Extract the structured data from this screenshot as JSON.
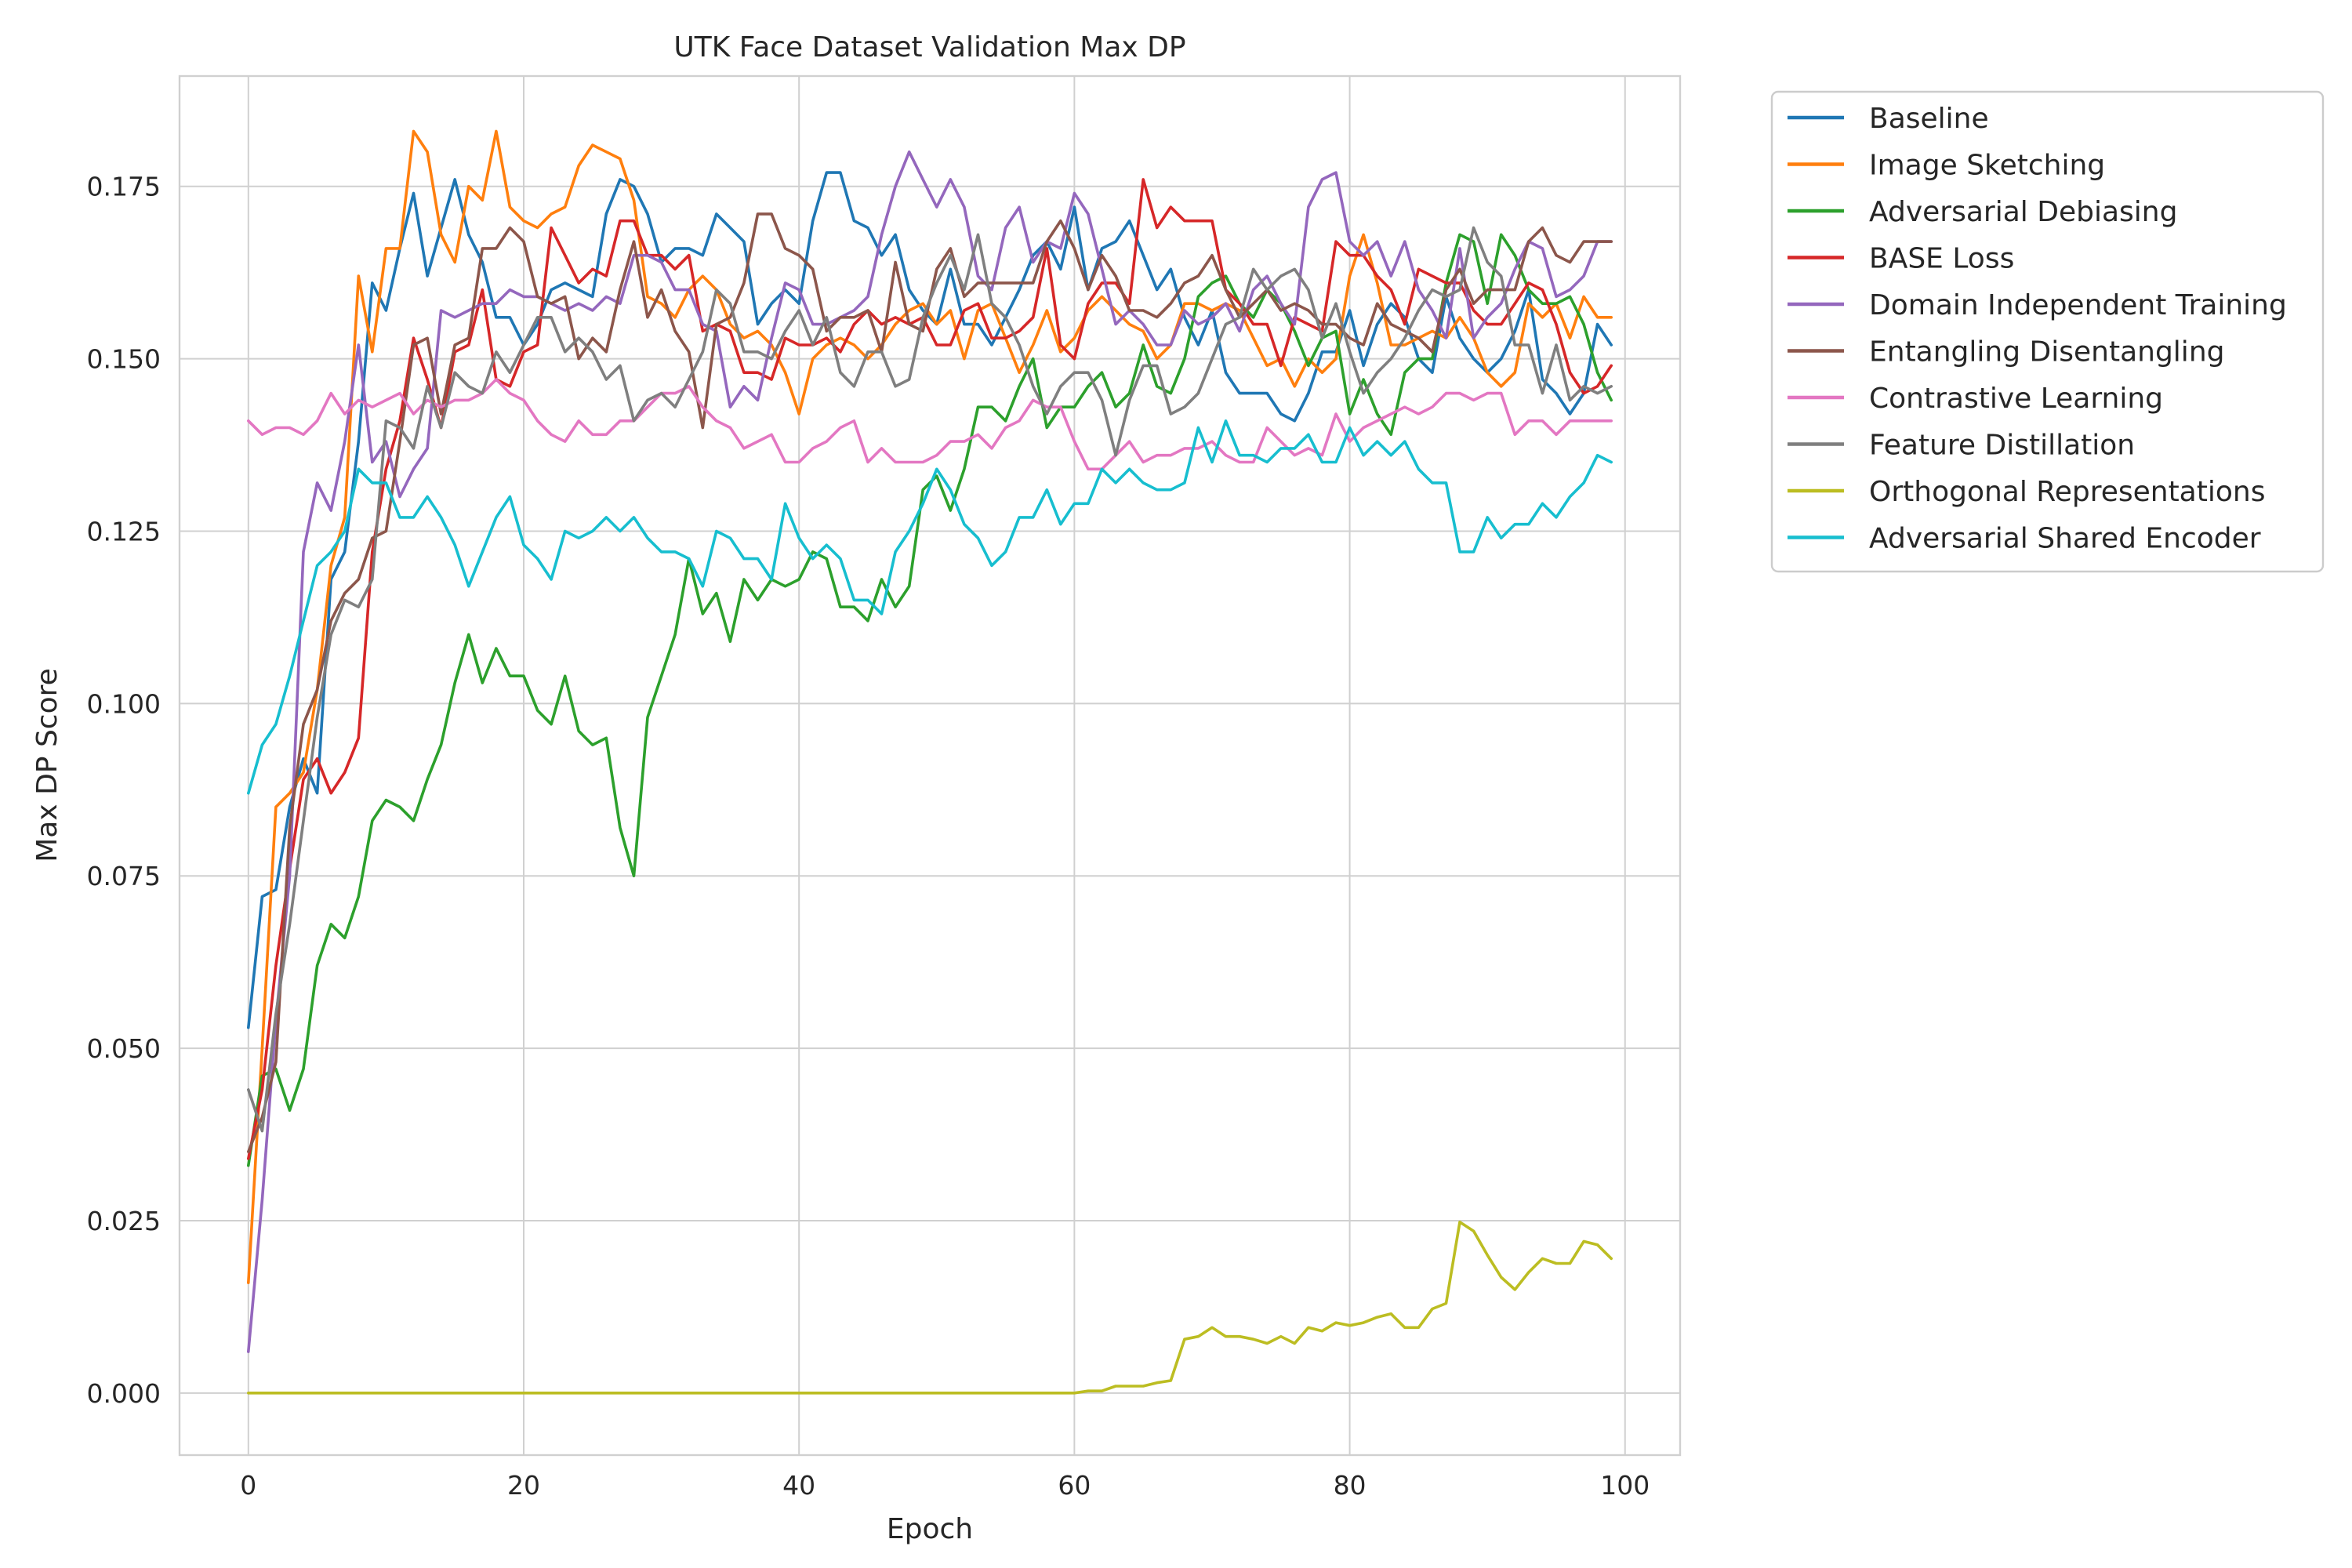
{
  "chart_data": {
    "type": "line",
    "title": "UTK Face Dataset Validation Max DP",
    "xlabel": "Epoch",
    "ylabel": "Max DP Score",
    "xlim": [
      -5,
      104
    ],
    "ylim": [
      -0.009,
      0.191
    ],
    "xticks": [
      0,
      20,
      40,
      60,
      80,
      100
    ],
    "xtick_labels": [
      "0",
      "20",
      "40",
      "60",
      "80",
      "100"
    ],
    "yticks": [
      0.0,
      0.025,
      0.05,
      0.075,
      0.1,
      0.125,
      0.15,
      0.175
    ],
    "ytick_labels": [
      "0.000",
      "0.025",
      "0.050",
      "0.075",
      "0.100",
      "0.125",
      "0.150",
      "0.175"
    ],
    "grid": true,
    "legend_position": "outside-right",
    "series": [
      {
        "name": "Baseline",
        "color": "#1f77b4",
        "values": [
          0.053,
          0.072,
          0.073,
          0.085,
          0.092,
          0.087,
          0.118,
          0.122,
          0.138,
          0.161,
          0.157,
          0.166,
          0.174,
          0.162,
          0.169,
          0.176,
          0.168,
          0.164,
          0.156,
          0.156,
          0.152,
          0.155,
          0.16,
          0.161,
          0.16,
          0.159,
          0.171,
          0.176,
          0.175,
          0.171,
          0.164,
          0.166,
          0.166,
          0.165,
          0.171,
          0.169,
          0.167,
          0.155,
          0.158,
          0.16,
          0.158,
          0.17,
          0.177,
          0.177,
          0.17,
          0.169,
          0.165,
          0.168,
          0.16,
          0.157,
          0.155,
          0.163,
          0.155,
          0.155,
          0.152,
          0.156,
          0.16,
          0.165,
          0.167,
          0.163,
          0.172,
          0.16,
          0.166,
          0.167,
          0.17,
          0.165,
          0.16,
          0.163,
          0.156,
          0.152,
          0.157,
          0.148,
          0.145,
          0.145,
          0.145,
          0.142,
          0.141,
          0.145,
          0.151,
          0.151,
          0.157,
          0.149,
          0.155,
          0.158,
          0.156,
          0.15,
          0.148,
          0.159,
          0.153,
          0.15,
          0.148,
          0.15,
          0.154,
          0.16,
          0.147,
          0.145,
          0.142,
          0.145,
          0.155,
          0.152
        ]
      },
      {
        "name": "Image Sketching",
        "color": "#ff7f0e",
        "values": [
          0.016,
          0.05,
          0.085,
          0.087,
          0.09,
          0.102,
          0.12,
          0.127,
          0.162,
          0.151,
          0.166,
          0.166,
          0.183,
          0.18,
          0.168,
          0.164,
          0.175,
          0.173,
          0.183,
          0.172,
          0.17,
          0.169,
          0.171,
          0.172,
          0.178,
          0.181,
          0.18,
          0.179,
          0.173,
          0.159,
          0.158,
          0.156,
          0.16,
          0.162,
          0.16,
          0.155,
          0.153,
          0.154,
          0.152,
          0.148,
          0.142,
          0.15,
          0.152,
          0.153,
          0.152,
          0.15,
          0.152,
          0.155,
          0.157,
          0.158,
          0.155,
          0.157,
          0.15,
          0.157,
          0.158,
          0.153,
          0.148,
          0.152,
          0.157,
          0.151,
          0.153,
          0.157,
          0.159,
          0.157,
          0.155,
          0.154,
          0.15,
          0.152,
          0.158,
          0.158,
          0.157,
          0.158,
          0.157,
          0.153,
          0.149,
          0.15,
          0.146,
          0.15,
          0.148,
          0.15,
          0.162,
          0.168,
          0.161,
          0.152,
          0.152,
          0.153,
          0.154,
          0.153,
          0.156,
          0.153,
          0.148,
          0.146,
          0.148,
          0.158,
          0.156,
          0.158,
          0.153,
          0.159,
          0.156,
          0.156
        ]
      },
      {
        "name": "Adversarial Debiasing",
        "color": "#2ca02c",
        "values": [
          0.033,
          0.046,
          0.047,
          0.041,
          0.047,
          0.062,
          0.068,
          0.066,
          0.072,
          0.083,
          0.086,
          0.085,
          0.083,
          0.089,
          0.094,
          0.103,
          0.11,
          0.103,
          0.108,
          0.104,
          0.104,
          0.099,
          0.097,
          0.104,
          0.096,
          0.094,
          0.095,
          0.082,
          0.075,
          0.098,
          0.104,
          0.11,
          0.121,
          0.113,
          0.116,
          0.109,
          0.118,
          0.115,
          0.118,
          0.117,
          0.118,
          0.122,
          0.121,
          0.114,
          0.114,
          0.112,
          0.118,
          0.114,
          0.117,
          0.131,
          0.133,
          0.128,
          0.134,
          0.143,
          0.143,
          0.141,
          0.146,
          0.15,
          0.14,
          0.143,
          0.143,
          0.146,
          0.148,
          0.143,
          0.145,
          0.152,
          0.146,
          0.145,
          0.15,
          0.159,
          0.161,
          0.162,
          0.158,
          0.156,
          0.16,
          0.158,
          0.154,
          0.149,
          0.153,
          0.154,
          0.142,
          0.147,
          0.142,
          0.139,
          0.148,
          0.15,
          0.15,
          0.161,
          0.168,
          0.167,
          0.158,
          0.168,
          0.165,
          0.16,
          0.158,
          0.158,
          0.159,
          0.155,
          0.148,
          0.144
        ]
      },
      {
        "name": "BASE Loss",
        "color": "#d62728",
        "values": [
          0.034,
          0.044,
          0.062,
          0.076,
          0.089,
          0.092,
          0.087,
          0.09,
          0.095,
          0.122,
          0.134,
          0.141,
          0.153,
          0.147,
          0.14,
          0.151,
          0.152,
          0.16,
          0.147,
          0.146,
          0.151,
          0.152,
          0.169,
          0.165,
          0.161,
          0.163,
          0.162,
          0.17,
          0.17,
          0.165,
          0.165,
          0.163,
          0.165,
          0.154,
          0.155,
          0.154,
          0.148,
          0.148,
          0.147,
          0.153,
          0.152,
          0.152,
          0.153,
          0.151,
          0.155,
          0.157,
          0.155,
          0.156,
          0.155,
          0.156,
          0.152,
          0.152,
          0.157,
          0.158,
          0.153,
          0.153,
          0.154,
          0.156,
          0.166,
          0.152,
          0.15,
          0.158,
          0.161,
          0.161,
          0.158,
          0.176,
          0.169,
          0.172,
          0.17,
          0.17,
          0.17,
          0.16,
          0.158,
          0.155,
          0.155,
          0.149,
          0.156,
          0.155,
          0.154,
          0.167,
          0.165,
          0.165,
          0.162,
          0.16,
          0.155,
          0.163,
          0.162,
          0.161,
          0.161,
          0.157,
          0.155,
          0.155,
          0.158,
          0.161,
          0.16,
          0.155,
          0.148,
          0.145,
          0.146,
          0.149
        ]
      },
      {
        "name": "Domain Independent Training",
        "color": "#9467bd",
        "values": [
          0.006,
          0.028,
          0.054,
          0.075,
          0.122,
          0.132,
          0.128,
          0.138,
          0.152,
          0.135,
          0.138,
          0.13,
          0.134,
          0.137,
          0.157,
          0.156,
          0.157,
          0.158,
          0.158,
          0.16,
          0.159,
          0.159,
          0.158,
          0.157,
          0.158,
          0.157,
          0.159,
          0.158,
          0.165,
          0.165,
          0.164,
          0.16,
          0.16,
          0.155,
          0.154,
          0.143,
          0.146,
          0.144,
          0.153,
          0.161,
          0.16,
          0.155,
          0.155,
          0.156,
          0.157,
          0.159,
          0.168,
          0.175,
          0.18,
          0.176,
          0.172,
          0.176,
          0.172,
          0.162,
          0.16,
          0.169,
          0.172,
          0.164,
          0.167,
          0.166,
          0.174,
          0.171,
          0.163,
          0.155,
          0.157,
          0.155,
          0.152,
          0.152,
          0.157,
          0.155,
          0.156,
          0.158,
          0.154,
          0.16,
          0.162,
          0.158,
          0.155,
          0.172,
          0.176,
          0.177,
          0.167,
          0.165,
          0.167,
          0.162,
          0.167,
          0.16,
          0.157,
          0.153,
          0.166,
          0.153,
          0.156,
          0.158,
          0.163,
          0.167,
          0.166,
          0.159,
          0.16,
          0.162,
          0.167,
          0.167
        ]
      },
      {
        "name": "Entangling Disentangling",
        "color": "#8c564b",
        "values": [
          0.035,
          0.04,
          0.048,
          0.082,
          0.097,
          0.102,
          0.112,
          0.116,
          0.118,
          0.124,
          0.125,
          0.138,
          0.152,
          0.153,
          0.142,
          0.152,
          0.153,
          0.166,
          0.166,
          0.169,
          0.167,
          0.159,
          0.158,
          0.159,
          0.15,
          0.153,
          0.151,
          0.16,
          0.167,
          0.156,
          0.16,
          0.154,
          0.151,
          0.14,
          0.155,
          0.156,
          0.161,
          0.171,
          0.171,
          0.166,
          0.165,
          0.163,
          0.154,
          0.156,
          0.156,
          0.157,
          0.151,
          0.164,
          0.155,
          0.154,
          0.163,
          0.166,
          0.159,
          0.161,
          0.161,
          0.161,
          0.161,
          0.161,
          0.167,
          0.17,
          0.166,
          0.16,
          0.165,
          0.162,
          0.157,
          0.157,
          0.156,
          0.158,
          0.161,
          0.162,
          0.165,
          0.16,
          0.156,
          0.158,
          0.16,
          0.157,
          0.158,
          0.157,
          0.155,
          0.155,
          0.153,
          0.152,
          0.158,
          0.155,
          0.154,
          0.153,
          0.151,
          0.16,
          0.163,
          0.158,
          0.16,
          0.16,
          0.16,
          0.167,
          0.169,
          0.165,
          0.164,
          0.167,
          0.167,
          0.167
        ]
      },
      {
        "name": "Contrastive Learning",
        "color": "#e377c2",
        "values": [
          0.141,
          0.139,
          0.14,
          0.14,
          0.139,
          0.141,
          0.145,
          0.142,
          0.144,
          0.143,
          0.144,
          0.145,
          0.142,
          0.144,
          0.143,
          0.144,
          0.144,
          0.145,
          0.147,
          0.145,
          0.144,
          0.141,
          0.139,
          0.138,
          0.141,
          0.139,
          0.139,
          0.141,
          0.141,
          0.143,
          0.145,
          0.145,
          0.146,
          0.143,
          0.141,
          0.14,
          0.137,
          0.138,
          0.139,
          0.135,
          0.135,
          0.137,
          0.138,
          0.14,
          0.141,
          0.135,
          0.137,
          0.135,
          0.135,
          0.135,
          0.136,
          0.138,
          0.138,
          0.139,
          0.137,
          0.14,
          0.141,
          0.144,
          0.143,
          0.143,
          0.138,
          0.134,
          0.134,
          0.136,
          0.138,
          0.135,
          0.136,
          0.136,
          0.137,
          0.137,
          0.138,
          0.136,
          0.135,
          0.135,
          0.14,
          0.138,
          0.136,
          0.137,
          0.136,
          0.142,
          0.138,
          0.14,
          0.141,
          0.142,
          0.143,
          0.142,
          0.143,
          0.145,
          0.145,
          0.144,
          0.145,
          0.145,
          0.139,
          0.141,
          0.141,
          0.139,
          0.141,
          0.141,
          0.141,
          0.141
        ]
      },
      {
        "name": "Feature Distillation",
        "color": "#7f7f7f",
        "values": [
          0.044,
          0.038,
          0.055,
          0.068,
          0.083,
          0.098,
          0.11,
          0.115,
          0.114,
          0.118,
          0.141,
          0.14,
          0.137,
          0.146,
          0.14,
          0.148,
          0.146,
          0.145,
          0.151,
          0.148,
          0.152,
          0.156,
          0.156,
          0.151,
          0.153,
          0.151,
          0.147,
          0.149,
          0.141,
          0.144,
          0.145,
          0.143,
          0.147,
          0.151,
          0.16,
          0.158,
          0.151,
          0.151,
          0.15,
          0.154,
          0.157,
          0.152,
          0.156,
          0.148,
          0.146,
          0.151,
          0.151,
          0.146,
          0.147,
          0.156,
          0.161,
          0.165,
          0.16,
          0.168,
          0.158,
          0.156,
          0.152,
          0.146,
          0.142,
          0.146,
          0.148,
          0.148,
          0.144,
          0.136,
          0.144,
          0.149,
          0.149,
          0.142,
          0.143,
          0.145,
          0.15,
          0.155,
          0.156,
          0.163,
          0.16,
          0.162,
          0.163,
          0.16,
          0.153,
          0.158,
          0.151,
          0.145,
          0.148,
          0.15,
          0.153,
          0.157,
          0.16,
          0.159,
          0.16,
          0.169,
          0.164,
          0.162,
          0.152,
          0.152,
          0.145,
          0.152,
          0.144,
          0.146,
          0.145,
          0.146
        ]
      },
      {
        "name": "Orthogonal Representations",
        "color": "#bcbd22",
        "values": [
          0.0,
          0.0,
          0.0,
          0.0,
          0.0,
          0.0,
          0.0,
          0.0,
          0.0,
          0.0,
          0.0,
          0.0,
          0.0,
          0.0,
          0.0,
          0.0,
          0.0,
          0.0,
          0.0,
          0.0,
          0.0,
          0.0,
          0.0,
          0.0,
          0.0,
          0.0,
          0.0,
          0.0,
          0.0,
          0.0,
          0.0,
          0.0,
          0.0,
          0.0,
          0.0,
          0.0,
          0.0,
          0.0,
          0.0,
          0.0,
          0.0,
          0.0,
          0.0,
          0.0,
          0.0,
          0.0,
          0.0,
          0.0,
          0.0,
          0.0,
          0.0,
          0.0,
          0.0,
          0.0,
          0.0,
          0.0,
          0.0,
          0.0,
          0.0,
          0.0,
          0.0,
          0.0003,
          0.0003,
          0.001,
          0.001,
          0.001,
          0.0015,
          0.0018,
          0.0078,
          0.0082,
          0.0095,
          0.0082,
          0.0082,
          0.0078,
          0.0072,
          0.0082,
          0.0072,
          0.0095,
          0.009,
          0.0102,
          0.0098,
          0.0102,
          0.011,
          0.0115,
          0.0095,
          0.0095,
          0.0122,
          0.013,
          0.0248,
          0.0235,
          0.02,
          0.0168,
          0.015,
          0.0175,
          0.0195,
          0.0188,
          0.0188,
          0.022,
          0.0215,
          0.0195
        ]
      },
      {
        "name": "Adversarial Shared Encoder",
        "color": "#17becf",
        "values": [
          0.087,
          0.094,
          0.097,
          0.104,
          0.112,
          0.12,
          0.122,
          0.125,
          0.134,
          0.132,
          0.132,
          0.127,
          0.127,
          0.13,
          0.127,
          0.123,
          0.117,
          0.122,
          0.127,
          0.13,
          0.123,
          0.121,
          0.118,
          0.125,
          0.124,
          0.125,
          0.127,
          0.125,
          0.127,
          0.124,
          0.122,
          0.122,
          0.121,
          0.117,
          0.125,
          0.124,
          0.121,
          0.121,
          0.118,
          0.129,
          0.124,
          0.121,
          0.123,
          0.121,
          0.115,
          0.115,
          0.113,
          0.122,
          0.125,
          0.129,
          0.134,
          0.131,
          0.126,
          0.124,
          0.12,
          0.122,
          0.127,
          0.127,
          0.131,
          0.126,
          0.129,
          0.129,
          0.134,
          0.132,
          0.134,
          0.132,
          0.131,
          0.131,
          0.132,
          0.14,
          0.135,
          0.141,
          0.136,
          0.136,
          0.135,
          0.137,
          0.137,
          0.139,
          0.135,
          0.135,
          0.14,
          0.136,
          0.138,
          0.136,
          0.138,
          0.134,
          0.132,
          0.132,
          0.122,
          0.122,
          0.127,
          0.124,
          0.126,
          0.126,
          0.129,
          0.127,
          0.13,
          0.132,
          0.136,
          0.135
        ]
      }
    ]
  }
}
